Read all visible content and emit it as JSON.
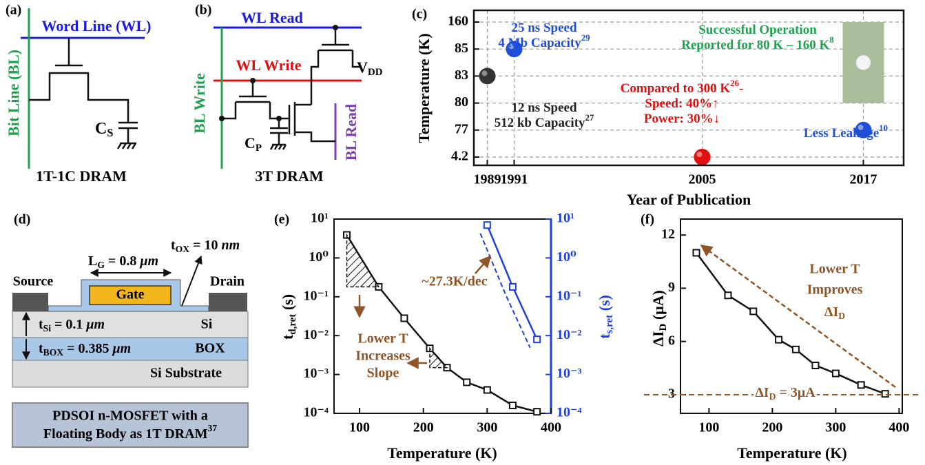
{
  "panel_a": {
    "label": "(a)",
    "word_line": "Word Line (WL)",
    "bit_line": "Bit Line (BL)",
    "capacitor": {
      "main": "C",
      "sub": "S"
    },
    "caption": "1T-1C DRAM"
  },
  "panel_b": {
    "label": "(b)",
    "wl_read": "WL Read",
    "wl_write": "WL Write",
    "vdd": {
      "main": "V",
      "sub": "DD"
    },
    "bl_write": "BL Write",
    "capacitor": {
      "main": "C",
      "sub": "P"
    },
    "bl_read": "BL Read",
    "caption": "3T DRAM"
  },
  "panel_d": {
    "label": "(d)",
    "source": "Source",
    "drain": "Drain",
    "gate": "Gate",
    "gate_length": {
      "main": "L",
      "sub": "G",
      "text": " = 0.8 ",
      "unit": "μm"
    },
    "oxide": {
      "main": "t",
      "sub": "OX",
      "text": " = 10 ",
      "unit": "nm"
    },
    "si_thickness": {
      "main": "t",
      "sub": "Si",
      "text": " = 0.1 ",
      "unit": "μm"
    },
    "si": "Si",
    "box_thickness": {
      "main": "t",
      "sub": "BOX",
      "text": " = 0.385 ",
      "unit": "μm"
    },
    "box": "BOX",
    "substrate": "Si Substrate",
    "caption": {
      "lines": [
        "PDSOI n-MOSFET with a",
        "Floating Body as 1T DRAM"
      ],
      "ref": "37"
    }
  },
  "chart_data": [
    {
      "type": "scatter",
      "label": "(c)",
      "x_label": "Year of Publication",
      "y_label": "Temperature (K)",
      "x": [
        1989,
        1991,
        2005,
        2017
      ],
      "values": [
        83,
        85,
        4.2,
        77
      ],
      "colors": [
        "#333333",
        "#1f4fd8",
        "#e01010",
        "#1f4fd8"
      ],
      "range_band": {
        "x": 2017,
        "low": 80,
        "high": 160,
        "color": "#a9bd9b"
      },
      "xlim": [
        1988,
        2020
      ],
      "xticks": [
        1989,
        1991,
        2005,
        2017
      ],
      "ylim": [
        4.2,
        160
      ],
      "yticks": [
        4.2,
        77,
        80,
        83,
        85,
        160
      ],
      "y_scale": "tick-rank",
      "grid": true,
      "annotations": [
        {
          "lines": [
            "25 ns Speed",
            "4 Mb Capacity"
          ],
          "ref": "29",
          "color": "#1f4fd8"
        },
        {
          "lines": [
            "Successful Operation",
            "Reported for 80 K – 160 K"
          ],
          "ref": "8",
          "color": "#22a050"
        },
        {
          "lines": [
            "12 ns Speed",
            "512 kb Capacity"
          ],
          "ref": "27",
          "color": "#222222"
        },
        {
          "lines": [
            "Compared to 300 K",
            "Speed: 40%",
            "Power: 30%"
          ],
          "ref": "26",
          "suffix": "-",
          "arrows": [
            "↑",
            "↓"
          ],
          "color": "#e01010"
        },
        {
          "lines": [
            "Less Leakage"
          ],
          "ref": "10",
          "color": "#1f4fd8"
        }
      ]
    },
    {
      "type": "line",
      "label": "(e)",
      "x_label": "Temperature (K)",
      "y_label": {
        "main": "t",
        "sub": "d,ret",
        "unit": " (s)"
      },
      "y2_label": {
        "main": "t",
        "sub": "s,ret",
        "unit": " (s)"
      },
      "log_y": true,
      "xlim": [
        60,
        400
      ],
      "xticks": [
        100,
        200,
        300,
        400
      ],
      "ylim": [
        0.0001,
        10
      ],
      "yticks": [
        {
          "value": 0.0001,
          "label": "10⁻⁴"
        },
        {
          "value": 0.001,
          "label": "10⁻³"
        },
        {
          "value": 0.01,
          "label": "10⁻²"
        },
        {
          "value": 0.1,
          "label": "10⁻¹"
        },
        {
          "value": 1,
          "label": "10⁰"
        },
        {
          "value": 10,
          "label": "10¹"
        }
      ],
      "y2lim": [
        0.0001,
        10
      ],
      "y2ticks": [
        {
          "value": 0.0001,
          "label": "10⁻⁴"
        },
        {
          "value": 0.001,
          "label": "10⁻³"
        },
        {
          "value": 0.01,
          "label": "10⁻²"
        },
        {
          "value": 0.1,
          "label": "10⁻¹"
        },
        {
          "value": 1,
          "label": "10⁰"
        },
        {
          "value": 10,
          "label": "10¹"
        }
      ],
      "series": [
        {
          "color": "#111111",
          "x": [
            80,
            130,
            170,
            210,
            237,
            268,
            300,
            340,
            378
          ],
          "values": [
            3.9,
            0.18,
            0.028,
            0.0047,
            0.0015,
            0.00063,
            0.0004,
            0.00016,
            0.00011
          ]
        },
        {
          "color": "#1f3fe0",
          "axis": "y2",
          "x": [
            300,
            340,
            378
          ],
          "values": [
            7,
            0.18,
            0.008
          ]
        }
      ],
      "annotations": {
        "slope": "~27.3K/dec",
        "lower_t": [
          "Lower T",
          "Increases",
          "Slope"
        ]
      },
      "annotation_color": "#8f5526"
    },
    {
      "type": "line",
      "label": "(f)",
      "x_label": "Temperature (K)",
      "y_label": {
        "main": "ΔI",
        "sub": "D",
        "unit": " (μA)"
      },
      "xlim": [
        55,
        405
      ],
      "xticks": [
        100,
        200,
        300,
        400
      ],
      "ylim": [
        1.95,
        12.9
      ],
      "yticks": [
        3,
        6,
        9,
        12
      ],
      "series": [
        {
          "color": "#111111",
          "x": [
            80,
            130,
            170,
            210,
            237,
            268,
            300,
            340,
            378
          ],
          "values": [
            11,
            8.6,
            7.7,
            6.1,
            5.55,
            4.65,
            4.2,
            3.55,
            3.05
          ]
        }
      ],
      "hline": 3,
      "annotations": {
        "trend": [
          "Lower T",
          "Improves"
        ],
        "trend_symbol": {
          "main": "ΔI",
          "sub": "D"
        },
        "hline_label": {
          "main": "ΔI",
          "sub": "D",
          "text": " = 3μA"
        }
      },
      "annotation_color": "#8f5526"
    }
  ]
}
